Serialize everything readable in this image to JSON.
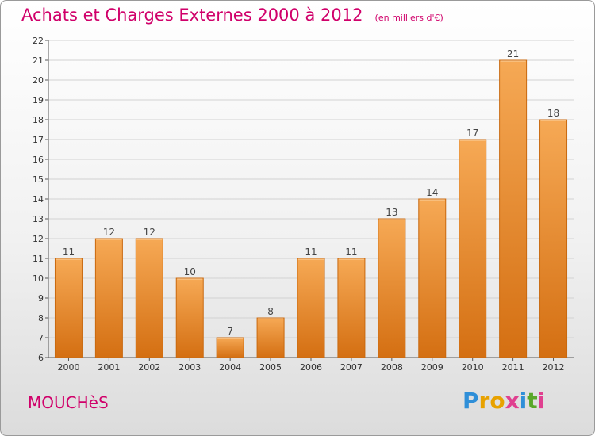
{
  "header": {
    "title": "Achats et Charges Externes 2000 à 2012",
    "subtitle": "(en milliers d'€)"
  },
  "footer": {
    "town": "MOUCHèS",
    "logo": "Proxiti",
    "logo_letters": [
      "P",
      "r",
      "o",
      "x",
      "i",
      "t",
      "i"
    ],
    "logo_colors": [
      "#2f8fd8",
      "#e8a200",
      "#e8a200",
      "#e04090",
      "#2f8fd8",
      "#5aa82a",
      "#e04090"
    ]
  },
  "colors": {
    "accent": "#d0006a",
    "bar_top": "#f6a955",
    "bar_bottom": "#d46f12",
    "bar_border": "#c9690f"
  },
  "chart_data": {
    "type": "bar",
    "title": "Achats et Charges Externes 2000 à 2012",
    "subtitle": "(en milliers d'€)",
    "categories": [
      "2000",
      "2001",
      "2002",
      "2003",
      "2004",
      "2005",
      "2006",
      "2007",
      "2008",
      "2009",
      "2010",
      "2011",
      "2012"
    ],
    "values": [
      11,
      12,
      12,
      10,
      7,
      8,
      11,
      11,
      13,
      14,
      17,
      21,
      18
    ],
    "xlabel": "",
    "ylabel": "",
    "ylim": [
      6,
      22
    ],
    "yticks": [
      6,
      7,
      8,
      9,
      10,
      11,
      12,
      13,
      14,
      15,
      16,
      17,
      18,
      19,
      20,
      21,
      22
    ],
    "grid": true
  }
}
